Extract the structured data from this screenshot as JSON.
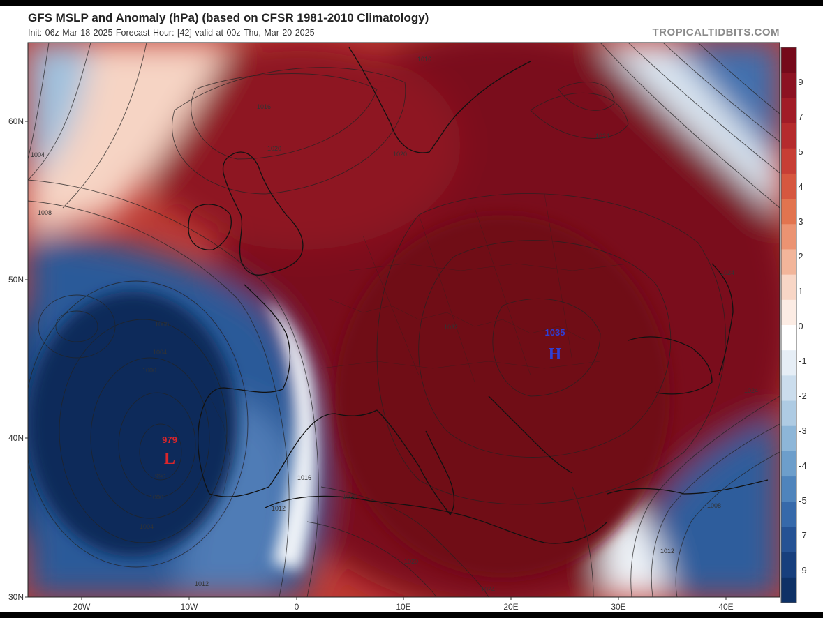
{
  "header": {
    "title": "GFS MSLP and Anomaly (hPa) (based on CFSR 1981-2010 Climatology)",
    "subtitle": "Init: 06z Mar 18 2025   Forecast Hour: [42]   valid at 00z Thu, Mar 20 2025",
    "credit": "TROPICALTIDBITS.COM"
  },
  "axes": {
    "lat_ticks": [
      "60N",
      "50N",
      "40N",
      "30N"
    ],
    "lon_ticks": [
      "20W",
      "10W",
      "0",
      "10E",
      "20E",
      "30E",
      "40E"
    ]
  },
  "colorbar": {
    "labels": [
      "9",
      "7",
      "5",
      "4",
      "3",
      "2",
      "1",
      "0",
      "-1",
      "-2",
      "-3",
      "-4",
      "-5",
      "-7",
      "-9"
    ],
    "colors": [
      "#75091a",
      "#8c1222",
      "#a11c27",
      "#b52b2d",
      "#c73e35",
      "#d6573f",
      "#e2744f",
      "#eb9372",
      "#f2b59a",
      "#f8d6c6",
      "#fcece4",
      "#ffffff",
      "#e6eef6",
      "#cbdded",
      "#aecbe3",
      "#8db6d8",
      "#6d9ecb",
      "#4f84bc",
      "#3669aa",
      "#255294",
      "#173f7d",
      "#0e3166"
    ]
  },
  "pressure_centers": [
    {
      "value": "1035",
      "letter": "H",
      "color": "#2e3fd6"
    },
    {
      "value": "979",
      "letter": "L",
      "color": "#d8262b"
    }
  ],
  "isobar_labels": [
    "1016",
    "1020",
    "1004",
    "1008",
    "1016",
    "1020",
    "1024",
    "1024",
    "1032",
    "1024",
    "1008",
    "1004",
    "1000",
    "996",
    "1000",
    "1004",
    "1012",
    "1016",
    "1020",
    "1012",
    "1008",
    "1012",
    "1020",
    "1024"
  ]
}
